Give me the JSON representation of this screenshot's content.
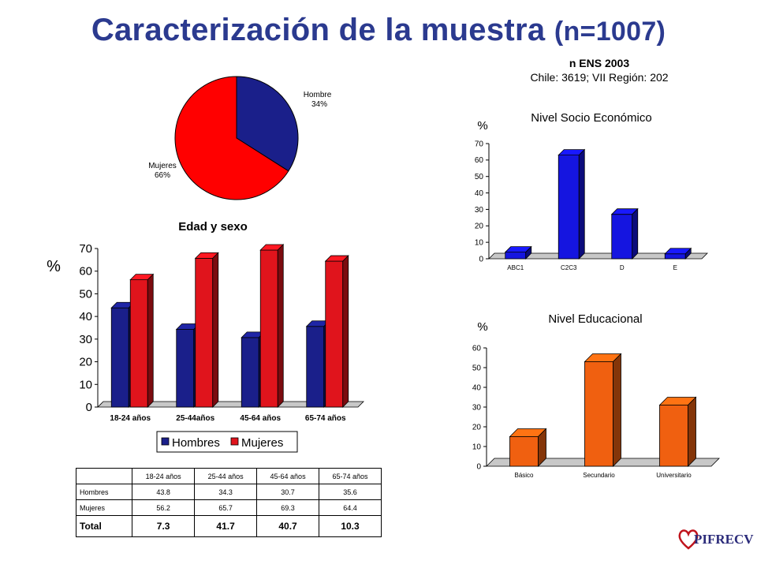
{
  "title": {
    "main": "Caracterización de la muestra",
    "n": "(n=1007)"
  },
  "ens": {
    "line1": "n ENS 2003",
    "line2": "Chile: 3619; VII Región: 202"
  },
  "logo": {
    "text": "PIFRECV"
  },
  "colors": {
    "title": "#2b3a8f",
    "hombres": "#1a1f8a",
    "mujeres": "#e0141c",
    "nse": "#1515e0",
    "edu": "#f06010"
  },
  "chart_data": [
    {
      "type": "pie",
      "title": "",
      "categories": [
        "Hombres",
        "Mujeres"
      ],
      "values": [
        34,
        66
      ],
      "labels": [
        "Hombres 34%",
        "Mujeres 66%"
      ],
      "colors": [
        "#1a1f8a",
        "#ff0000"
      ]
    },
    {
      "type": "bar",
      "title": "Edad y sexo",
      "ylabel": "%",
      "categories": [
        "18-24 años",
        "25-44años",
        "45-64 años",
        "65-74 años"
      ],
      "ylim": [
        0,
        70
      ],
      "yticks": [
        0,
        10,
        20,
        30,
        40,
        50,
        60,
        70
      ],
      "series": [
        {
          "name": "Hombres",
          "values": [
            43.8,
            34.3,
            30.7,
            35.6
          ],
          "color": "#1a1f8a"
        },
        {
          "name": "Mujeres",
          "values": [
            56.2,
            65.7,
            69.3,
            64.4
          ],
          "color": "#e0141c"
        }
      ],
      "legend": "bottom"
    },
    {
      "type": "bar",
      "title": "Nivel Socio Económico",
      "ylabel": "%",
      "categories": [
        "ABC1",
        "C2C3",
        "D",
        "E"
      ],
      "values": [
        4,
        63,
        27,
        3
      ],
      "ylim": [
        0,
        70
      ],
      "yticks": [
        0,
        10,
        20,
        30,
        40,
        50,
        60,
        70
      ],
      "color": "#1515e0"
    },
    {
      "type": "bar",
      "title": "Nivel Educacional",
      "ylabel": "%",
      "categories": [
        "Básico",
        "Secundario",
        "Universitario"
      ],
      "values": [
        15,
        53,
        31
      ],
      "ylim": [
        0,
        60
      ],
      "yticks": [
        0,
        10,
        20,
        30,
        40,
        50,
        60
      ],
      "color": "#f06010"
    }
  ],
  "table": {
    "headers": [
      "",
      "18-24 años",
      "25-44 años",
      "45-64 años",
      "65-74 años"
    ],
    "rows": [
      [
        "Hombres",
        "43.8",
        "34.3",
        "30.7",
        "35.6"
      ],
      [
        "Mujeres",
        "56.2",
        "65.7",
        "69.3",
        "64.4"
      ]
    ],
    "total": [
      "Total",
      "7.3",
      "41.7",
      "40.7",
      "10.3"
    ]
  }
}
